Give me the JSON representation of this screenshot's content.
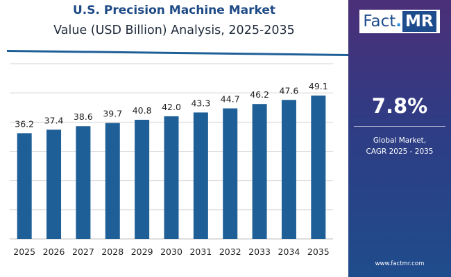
{
  "header": {
    "title": "U.S. Precision Machine Market",
    "subtitle": "Value (USD Billion) Analysis, 2025-2035"
  },
  "chart_data": {
    "type": "bar",
    "categories": [
      "2025",
      "2026",
      "2027",
      "2028",
      "2029",
      "2030",
      "2031",
      "2032",
      "2033",
      "2034",
      "2035"
    ],
    "values": [
      36.2,
      37.4,
      38.6,
      39.7,
      40.8,
      42.0,
      43.3,
      44.7,
      46.2,
      47.6,
      49.1
    ],
    "value_labels": [
      "36.2",
      "37.4",
      "38.6",
      "39.7",
      "40.8",
      "42.0",
      "43.3",
      "44.7",
      "46.2",
      "47.6",
      "49.1"
    ],
    "ylim": [
      0,
      60
    ],
    "grid": true,
    "bar_color": "#1f5f97"
  },
  "sidebar": {
    "logo_text_main": "Fact",
    "logo_text_dot": ".",
    "logo_text_mr": "MR",
    "cagr_value": "7.8%",
    "cagr_label_line1": "Global Market,",
    "cagr_label_line2": "CAGR 2025 - 2035",
    "website": "www.factmr.com"
  },
  "colors": {
    "accent": "#1e4a86",
    "bar": "#1f5f97",
    "panel_top": "#4b2f78",
    "panel_bottom": "#1f4c8c"
  }
}
